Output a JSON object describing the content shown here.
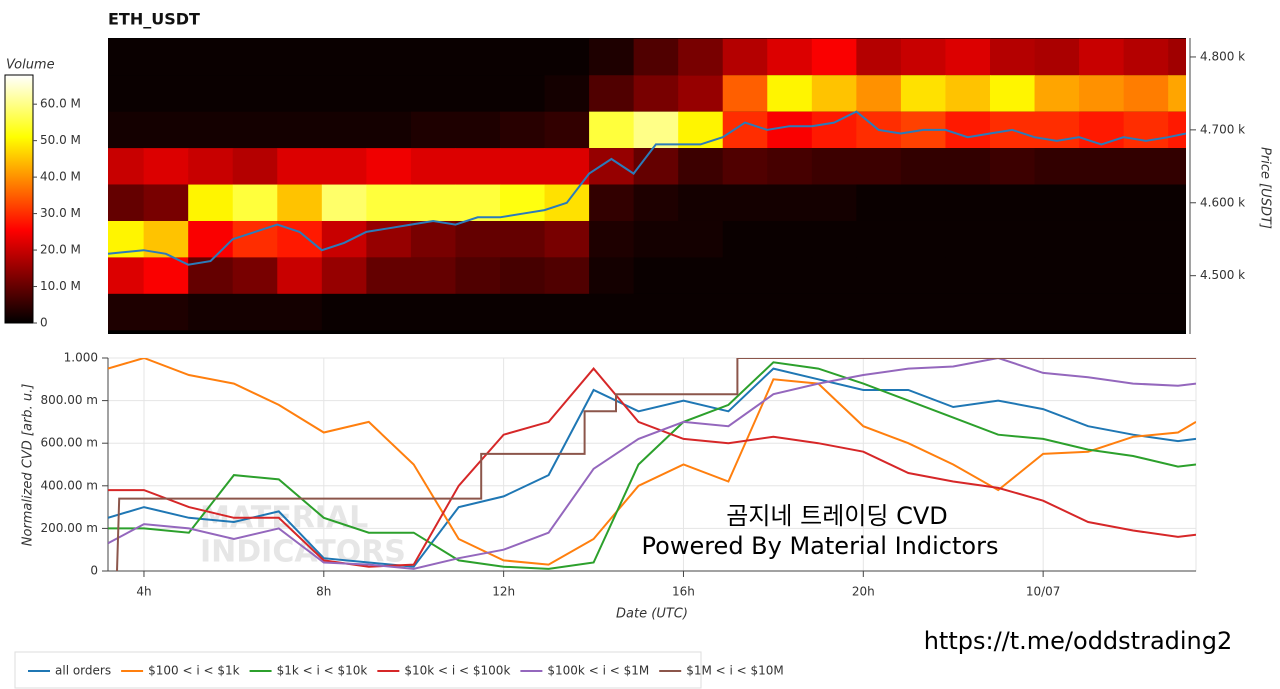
{
  "chart_data": [
    {
      "type": "heatmap",
      "title": "ETH_USDT",
      "ylabel": "Price [USDT]",
      "zlabel": "Volume",
      "xlim": [
        3.2,
        27.4
      ],
      "ylim": [
        4420,
        4826
      ],
      "yticks": [
        {
          "value": 4500,
          "label": "4.500 k"
        },
        {
          "value": 4600,
          "label": "4.600 k"
        },
        {
          "value": 4700,
          "label": "4.700 k"
        },
        {
          "value": 4800,
          "label": "4.800 k"
        }
      ],
      "zlim": [
        0,
        68
      ],
      "zticks": [
        0,
        {
          "value": 10,
          "label": "10.0 M"
        },
        {
          "value": 20,
          "label": "20.0 M"
        },
        {
          "value": 30,
          "label": "30.0 M"
        },
        {
          "value": 40,
          "label": "40.0 M"
        },
        {
          "value": 50,
          "label": "50.0 M"
        },
        {
          "value": 60,
          "label": "60.0 M"
        }
      ],
      "x": [
        3.5,
        4.5,
        5.5,
        6.5,
        7.5,
        8.5,
        9.5,
        10.5,
        11.5,
        12.5,
        13.5,
        14.5,
        15.5,
        16.5,
        17.5,
        18.5,
        19.5,
        20.5,
        21.5,
        22.5,
        23.5,
        24.5,
        25.5,
        26.5,
        27.5
      ],
      "y": [
        4800,
        4750,
        4700,
        4650,
        4600,
        4550,
        4500,
        4450
      ],
      "z": [
        [
          1,
          1,
          1,
          1,
          1,
          1,
          1,
          1,
          1,
          1,
          1,
          3,
          8,
          12,
          18,
          22,
          25,
          18,
          20,
          22,
          18,
          17,
          20,
          18,
          16
        ],
        [
          1,
          1,
          1,
          1,
          1,
          1,
          1,
          1,
          1,
          1,
          2,
          8,
          12,
          15,
          35,
          50,
          45,
          40,
          48,
          45,
          50,
          42,
          40,
          38,
          42
        ],
        [
          2,
          2,
          2,
          2,
          2,
          2,
          2,
          3,
          3,
          4,
          5,
          55,
          60,
          50,
          30,
          25,
          28,
          30,
          32,
          28,
          30,
          30,
          28,
          30,
          28
        ],
        [
          20,
          22,
          20,
          18,
          22,
          22,
          24,
          22,
          22,
          22,
          22,
          15,
          10,
          6,
          8,
          7,
          6,
          6,
          5,
          5,
          6,
          5,
          5,
          5,
          5
        ],
        [
          10,
          12,
          50,
          55,
          45,
          58,
          55,
          55,
          55,
          52,
          48,
          5,
          3,
          2,
          2,
          2,
          2,
          1,
          1,
          1,
          1,
          1,
          1,
          1,
          1
        ],
        [
          50,
          45,
          25,
          30,
          28,
          20,
          15,
          12,
          10,
          10,
          12,
          3,
          2,
          2,
          1,
          1,
          1,
          1,
          1,
          1,
          1,
          1,
          1,
          1,
          1
        ],
        [
          22,
          25,
          10,
          12,
          20,
          15,
          10,
          10,
          8,
          7,
          8,
          2,
          1,
          1,
          1,
          1,
          1,
          1,
          1,
          1,
          1,
          1,
          1,
          1,
          1
        ],
        [
          3,
          3,
          2,
          2,
          2,
          1,
          1,
          1,
          1,
          1,
          1,
          1,
          1,
          1,
          1,
          1,
          1,
          1,
          1,
          1,
          1,
          1,
          1,
          1,
          1
        ]
      ],
      "series": [
        {
          "color": "#2b7bba",
          "x": [
            3.2,
            4,
            4.5,
            5,
            5.5,
            6,
            6.5,
            7,
            7.5,
            8,
            8.5,
            9,
            9.5,
            10,
            10.5,
            11,
            11.5,
            12,
            12.5,
            13,
            13.5,
            14,
            14.5,
            15,
            15.5,
            16,
            16.5,
            17,
            17.5,
            18,
            18.5,
            19,
            19.5,
            20,
            20.5,
            21,
            21.5,
            22,
            22.5,
            23,
            23.5,
            24,
            24.5,
            25,
            25.5,
            26,
            26.5,
            27,
            27.4
          ],
          "values": [
            4530,
            4535,
            4530,
            4515,
            4520,
            4550,
            4560,
            4570,
            4560,
            4535,
            4545,
            4560,
            4565,
            4570,
            4575,
            4570,
            4580,
            4580,
            4585,
            4590,
            4600,
            4640,
            4660,
            4640,
            4680,
            4680,
            4680,
            4690,
            4710,
            4700,
            4705,
            4705,
            4710,
            4725,
            4700,
            4695,
            4700,
            4700,
            4690,
            4695,
            4700,
            4690,
            4685,
            4690,
            4680,
            4690,
            4685,
            4690,
            4695
          ]
        }
      ]
    },
    {
      "type": "line",
      "xlabel": "Date (UTC)",
      "ylabel": "Normalized CVD [arb. u.]",
      "grid": true,
      "xlim": [
        3.2,
        27.4
      ],
      "ylim": [
        0,
        1000
      ],
      "xticks": [
        {
          "value": 4,
          "label": "4h"
        },
        {
          "value": 8,
          "label": "8h"
        },
        {
          "value": 12,
          "label": "12h"
        },
        {
          "value": 16,
          "label": "16h"
        },
        {
          "value": 20,
          "label": "20h"
        },
        {
          "value": 24,
          "label": "10/07"
        }
      ],
      "yticks": [
        0,
        {
          "value": 200,
          "label": "200.00 m"
        },
        {
          "value": 400,
          "label": "400.00 m"
        },
        {
          "value": 600,
          "label": "600.00 m"
        },
        {
          "value": 800,
          "label": "800.00 m"
        },
        {
          "value": 1000,
          "label": "1.000"
        }
      ],
      "x": [
        3.2,
        4,
        5,
        6,
        7,
        8,
        9,
        10,
        11,
        12,
        13,
        14,
        15,
        16,
        17,
        18,
        19,
        20,
        21,
        22,
        23,
        24,
        25,
        26,
        27,
        27.4
      ],
      "series": [
        {
          "name": "all orders",
          "color": "#1f77b4",
          "values": [
            250,
            300,
            250,
            230,
            280,
            60,
            40,
            20,
            300,
            350,
            450,
            850,
            750,
            800,
            750,
            950,
            900,
            850,
            850,
            770,
            800,
            760,
            680,
            640,
            610,
            620
          ]
        },
        {
          "name": "$100 < i < $1k",
          "color": "#ff7f0e",
          "values": [
            950,
            1000,
            920,
            880,
            780,
            650,
            700,
            500,
            150,
            50,
            30,
            150,
            400,
            500,
            420,
            900,
            880,
            680,
            600,
            500,
            380,
            550,
            560,
            630,
            650,
            700
          ]
        },
        {
          "name": "$1k < i < $10k",
          "color": "#2ca02c",
          "values": [
            200,
            200,
            180,
            450,
            430,
            250,
            180,
            180,
            50,
            20,
            10,
            40,
            500,
            700,
            780,
            980,
            950,
            880,
            800,
            720,
            640,
            620,
            570,
            540,
            490,
            500
          ]
        },
        {
          "name": "$10k < i < $100k",
          "color": "#d62728",
          "values": [
            380,
            380,
            300,
            250,
            250,
            50,
            20,
            30,
            400,
            640,
            700,
            950,
            700,
            620,
            600,
            630,
            600,
            560,
            460,
            420,
            390,
            330,
            230,
            190,
            160,
            170
          ]
        },
        {
          "name": "$100k < i < $1M",
          "color": "#9467bd",
          "values": [
            130,
            220,
            200,
            150,
            200,
            40,
            30,
            10,
            60,
            100,
            180,
            480,
            620,
            700,
            680,
            830,
            880,
            920,
            950,
            960,
            1000,
            930,
            910,
            880,
            870,
            880
          ]
        },
        {
          "name": "$1M < i < $10M",
          "color": "#8c564b",
          "x": [
            3.4,
            3.45,
            11.5,
            11.5,
            13.8,
            13.8,
            14.5,
            14.5,
            17.2,
            17.2,
            27.4
          ],
          "values": [
            0,
            340,
            340,
            550,
            550,
            750,
            750,
            830,
            830,
            1000,
            1000
          ]
        }
      ],
      "annotations": [
        "곰지네 트레이딩 CVD",
        "Powered By Material Indictors",
        "https://t.me/oddstrading2",
        "MATERIAL",
        "INDICATORS"
      ]
    }
  ]
}
